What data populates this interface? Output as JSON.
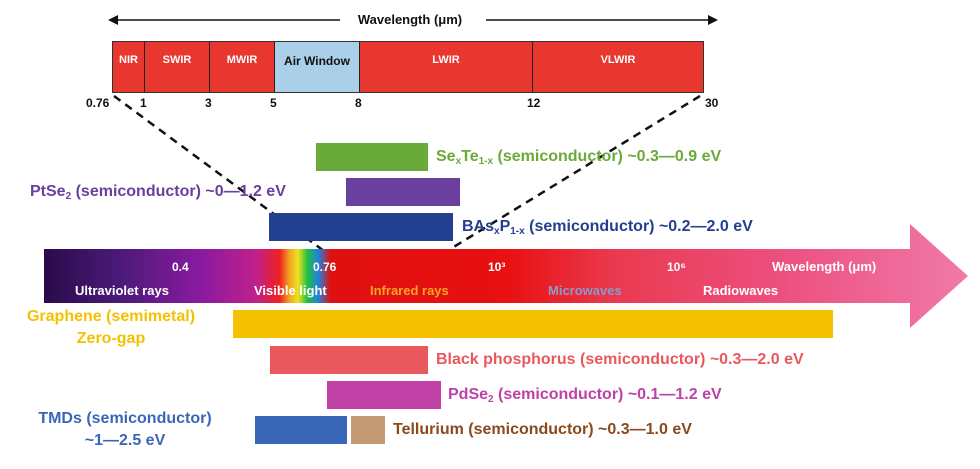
{
  "top_axis": {
    "title": "Wavelength (μm)",
    "bands": [
      {
        "label": "NIR",
        "color": "#e8372f"
      },
      {
        "label": "SWIR",
        "color": "#e8372f"
      },
      {
        "label": "MWIR",
        "color": "#e8372f"
      },
      {
        "label": "Air Window",
        "color": "#a9cfe9"
      },
      {
        "label": "LWIR",
        "color": "#e8372f"
      },
      {
        "label": "VLWIR",
        "color": "#e8372f"
      }
    ],
    "ticks": [
      "0.76",
      "1",
      "3",
      "5",
      "8",
      "12",
      "30"
    ]
  },
  "spectrum": {
    "ticks": [
      "0.4",
      "0.76",
      "10³",
      "10⁶"
    ],
    "wavelength_label": "Wavelength (μm)",
    "regions": [
      {
        "label": "Ultraviolet rays",
        "color": "#ffffff"
      },
      {
        "label": "Visible light",
        "color": "#ffffff"
      },
      {
        "label": "Infrared rays",
        "color": "#f5a623"
      },
      {
        "label": "Microwaves",
        "color": "#8a9bc9"
      },
      {
        "label": "Radiowaves",
        "color": "#ffffff"
      }
    ]
  },
  "materials": {
    "sexte": {
      "name": "Se",
      "sub1": "x",
      "mid": "Te",
      "sub2": "1-x",
      "rest": " (semiconductor) ~0.3—0.9 eV",
      "color": "#6aaa3a"
    },
    "ptse2": {
      "name": "PtSe",
      "sub1": "2",
      "rest": " (semiconductor) ~0—1.2 eV",
      "color": "#6a3fa0"
    },
    "basp": {
      "name": "BAs",
      "sub1": "x",
      "mid": "P",
      "sub2": "1-x",
      "rest": " (semiconductor) ~0.2—2.0 eV",
      "color": "#233f8f"
    },
    "graphene": {
      "line1": "Graphene (semimetal)",
      "line2": "Zero-gap",
      "color": "#f5c000"
    },
    "bp": {
      "text": "Black phosphorus (semiconductor) ~0.3—2.0 eV",
      "color": "#e8585c"
    },
    "pdse2": {
      "name": "PdSe",
      "sub1": "2",
      "rest": " (semiconductor) ~0.1—1.2 eV",
      "color": "#c040a8"
    },
    "tmds": {
      "line1": "TMDs (semiconductor)",
      "line2": "~1—2.5 eV",
      "color": "#3a66b8"
    },
    "tellurium": {
      "text": "Tellurium (semiconductor) ~0.3—1.0 eV",
      "color": "#8a4a1c"
    }
  }
}
